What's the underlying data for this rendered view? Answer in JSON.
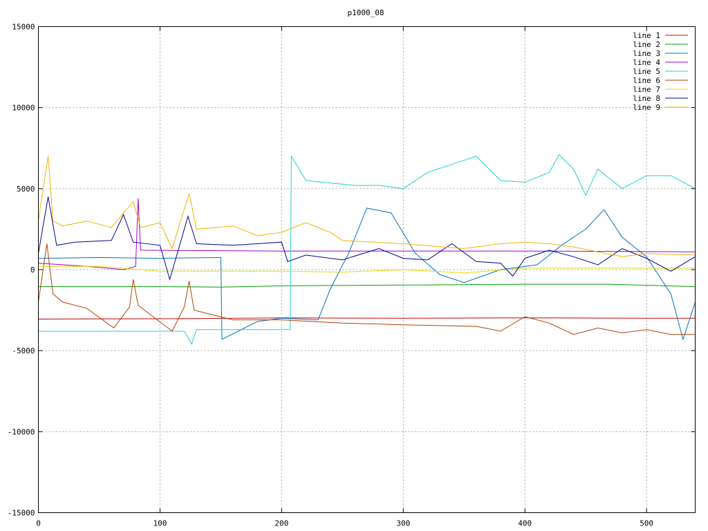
{
  "chart_data": {
    "type": "line",
    "title": "p1000_08",
    "xlabel": "",
    "ylabel": "",
    "xlim": [
      0,
      540
    ],
    "ylim": [
      -15000,
      15000
    ],
    "x_ticks": [
      0,
      100,
      200,
      300,
      400,
      500
    ],
    "y_ticks": [
      -15000,
      -10000,
      -5000,
      0,
      5000,
      10000,
      15000
    ],
    "grid": true,
    "legend_position": "top-right",
    "series": [
      {
        "name": "line 1",
        "color": "#cc0000",
        "points": [
          [
            0,
            -3050
          ],
          [
            100,
            -3030
          ],
          [
            200,
            -2980
          ],
          [
            300,
            -3000
          ],
          [
            400,
            -2980
          ],
          [
            500,
            -3000
          ],
          [
            540,
            -3000
          ]
        ]
      },
      {
        "name": "line 2",
        "color": "#00a000",
        "points": [
          [
            0,
            -1050
          ],
          [
            100,
            -1050
          ],
          [
            150,
            -1080
          ],
          [
            200,
            -1000
          ],
          [
            300,
            -950
          ],
          [
            400,
            -900
          ],
          [
            470,
            -900
          ],
          [
            540,
            -1050
          ]
        ]
      },
      {
        "name": "line 3",
        "color": "#0070c0",
        "points": [
          [
            0,
            700
          ],
          [
            50,
            750
          ],
          [
            100,
            700
          ],
          [
            150,
            750
          ],
          [
            151,
            -4300
          ],
          [
            180,
            -3200
          ],
          [
            200,
            -3000
          ],
          [
            230,
            -3100
          ],
          [
            240,
            -1200
          ],
          [
            255,
            1000
          ],
          [
            270,
            3800
          ],
          [
            290,
            3500
          ],
          [
            310,
            1000
          ],
          [
            330,
            -300
          ],
          [
            350,
            -800
          ],
          [
            380,
            0
          ],
          [
            410,
            300
          ],
          [
            430,
            1500
          ],
          [
            450,
            2500
          ],
          [
            465,
            3700
          ],
          [
            480,
            2000
          ],
          [
            500,
            800
          ],
          [
            520,
            -1500
          ],
          [
            530,
            -4300
          ],
          [
            540,
            -2000
          ]
        ]
      },
      {
        "name": "line 4",
        "color": "#a000d0",
        "points": [
          [
            0,
            400
          ],
          [
            40,
            200
          ],
          [
            70,
            0
          ],
          [
            80,
            200
          ],
          [
            82,
            4400
          ],
          [
            84,
            1200
          ],
          [
            200,
            1150
          ],
          [
            300,
            1150
          ],
          [
            400,
            1150
          ],
          [
            540,
            1100
          ]
        ]
      },
      {
        "name": "line 5",
        "color": "#20d0d0",
        "points": [
          [
            0,
            -3800
          ],
          [
            60,
            -3800
          ],
          [
            120,
            -3800
          ],
          [
            126,
            -4600
          ],
          [
            130,
            -3700
          ],
          [
            200,
            -3700
          ],
          [
            207,
            -3700
          ],
          [
            208,
            7000
          ],
          [
            220,
            5500
          ],
          [
            260,
            5200
          ],
          [
            280,
            5200
          ],
          [
            300,
            5000
          ],
          [
            320,
            6000
          ],
          [
            340,
            6500
          ],
          [
            360,
            7000
          ],
          [
            380,
            5500
          ],
          [
            400,
            5400
          ],
          [
            420,
            6000
          ],
          [
            428,
            7100
          ],
          [
            440,
            6200
          ],
          [
            450,
            4600
          ],
          [
            460,
            6200
          ],
          [
            480,
            5000
          ],
          [
            500,
            5800
          ],
          [
            520,
            5800
          ],
          [
            540,
            5000
          ]
        ]
      },
      {
        "name": "line 6",
        "color": "#b04000",
        "points": [
          [
            0,
            -2000
          ],
          [
            7,
            1600
          ],
          [
            12,
            -1500
          ],
          [
            20,
            -2000
          ],
          [
            40,
            -2400
          ],
          [
            62,
            -3600
          ],
          [
            75,
            -2300
          ],
          [
            78,
            -600
          ],
          [
            82,
            -2200
          ],
          [
            110,
            -3800
          ],
          [
            120,
            -2300
          ],
          [
            124,
            -700
          ],
          [
            128,
            -2500
          ],
          [
            160,
            -3100
          ],
          [
            200,
            -3100
          ],
          [
            250,
            -3300
          ],
          [
            300,
            -3400
          ],
          [
            360,
            -3500
          ],
          [
            380,
            -3800
          ],
          [
            400,
            -2900
          ],
          [
            420,
            -3300
          ],
          [
            440,
            -4000
          ],
          [
            460,
            -3600
          ],
          [
            480,
            -3900
          ],
          [
            500,
            -3700
          ],
          [
            520,
            -4000
          ],
          [
            540,
            -4000
          ]
        ]
      },
      {
        "name": "line 7",
        "color": "#e8d800",
        "points": [
          [
            0,
            200
          ],
          [
            50,
            200
          ],
          [
            100,
            -100
          ],
          [
            150,
            -100
          ],
          [
            200,
            -100
          ],
          [
            250,
            -150
          ],
          [
            300,
            0
          ],
          [
            350,
            -200
          ],
          [
            400,
            100
          ],
          [
            450,
            100
          ],
          [
            500,
            100
          ],
          [
            540,
            100
          ]
        ]
      },
      {
        "name": "line 8",
        "color": "#000090",
        "points": [
          [
            0,
            1000
          ],
          [
            8,
            4500
          ],
          [
            15,
            1500
          ],
          [
            30,
            1700
          ],
          [
            60,
            1800
          ],
          [
            70,
            3400
          ],
          [
            78,
            1700
          ],
          [
            100,
            1500
          ],
          [
            108,
            -600
          ],
          [
            115,
            1200
          ],
          [
            123,
            3300
          ],
          [
            130,
            1600
          ],
          [
            160,
            1500
          ],
          [
            200,
            1700
          ],
          [
            205,
            500
          ],
          [
            220,
            900
          ],
          [
            250,
            600
          ],
          [
            280,
            1300
          ],
          [
            300,
            700
          ],
          [
            320,
            600
          ],
          [
            340,
            1600
          ],
          [
            360,
            500
          ],
          [
            380,
            400
          ],
          [
            390,
            -400
          ],
          [
            400,
            700
          ],
          [
            420,
            1200
          ],
          [
            440,
            800
          ],
          [
            460,
            300
          ],
          [
            480,
            1300
          ],
          [
            500,
            700
          ],
          [
            520,
            -100
          ],
          [
            540,
            800
          ]
        ]
      },
      {
        "name": "line 9",
        "color": "#f0b400",
        "points": [
          [
            0,
            3000
          ],
          [
            8,
            7000
          ],
          [
            12,
            3000
          ],
          [
            20,
            2700
          ],
          [
            40,
            3000
          ],
          [
            60,
            2600
          ],
          [
            78,
            4200
          ],
          [
            84,
            2600
          ],
          [
            100,
            2900
          ],
          [
            110,
            1300
          ],
          [
            124,
            4700
          ],
          [
            130,
            2500
          ],
          [
            160,
            2700
          ],
          [
            180,
            2100
          ],
          [
            200,
            2300
          ],
          [
            220,
            2900
          ],
          [
            240,
            2300
          ],
          [
            250,
            1800
          ],
          [
            300,
            1600
          ],
          [
            350,
            1300
          ],
          [
            380,
            1600
          ],
          [
            400,
            1700
          ],
          [
            420,
            1600
          ],
          [
            440,
            1400
          ],
          [
            460,
            1100
          ],
          [
            480,
            800
          ],
          [
            500,
            1000
          ],
          [
            540,
            900
          ]
        ]
      }
    ]
  }
}
